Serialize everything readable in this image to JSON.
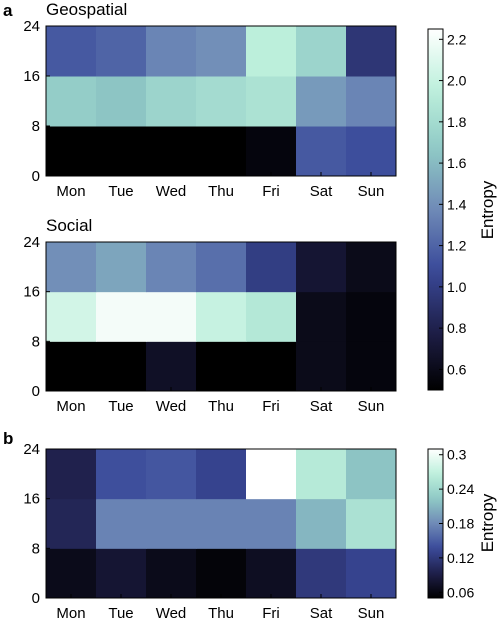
{
  "chart_data": [
    {
      "type": "heatmap",
      "panel_label": "a",
      "title": "Geospatial",
      "categories": [
        "Mon",
        "Tue",
        "Wed",
        "Thu",
        "Fri",
        "Sat",
        "Sun"
      ],
      "y_bins": [
        "0-8",
        "8-16",
        "16-24"
      ],
      "yticks": [
        "0",
        "8",
        "16",
        "24"
      ],
      "ylim": [
        0,
        24
      ],
      "values": [
        [
          0.45,
          0.4,
          0.45,
          0.45,
          0.55,
          1.15,
          1.1
        ],
        [
          1.7,
          1.65,
          1.75,
          1.8,
          1.85,
          1.45,
          1.35
        ],
        [
          1.15,
          1.2,
          1.35,
          1.4,
          1.95,
          1.75,
          0.95
        ]
      ]
    },
    {
      "type": "heatmap",
      "panel_label": "",
      "title": "Social",
      "categories": [
        "Mon",
        "Tue",
        "Wed",
        "Thu",
        "Fri",
        "Sat",
        "Sun"
      ],
      "y_bins": [
        "0-8",
        "8-16",
        "16-24"
      ],
      "yticks": [
        "0",
        "8",
        "16",
        "24"
      ],
      "ylim": [
        0,
        24
      ],
      "values": [
        [
          0.5,
          0.5,
          0.65,
          0.5,
          0.5,
          0.6,
          0.55
        ],
        [
          2.05,
          2.2,
          2.2,
          2.0,
          1.9,
          0.6,
          0.55
        ],
        [
          1.4,
          1.5,
          1.35,
          1.25,
          1.0,
          0.7,
          0.6
        ]
      ]
    },
    {
      "type": "heatmap",
      "panel_label": "b",
      "title": "",
      "categories": [
        "Mon",
        "Tue",
        "Wed",
        "Thu",
        "Fri",
        "Sat",
        "Sun"
      ],
      "y_bins": [
        "0-8",
        "8-16",
        "16-24"
      ],
      "yticks": [
        "0",
        "8",
        "16",
        "24"
      ],
      "ylim": [
        0,
        24
      ],
      "values": [
        [
          0.065,
          0.08,
          0.065,
          0.055,
          0.07,
          0.12,
          0.13
        ],
        [
          0.1,
          0.175,
          0.175,
          0.175,
          0.175,
          0.21,
          0.25
        ],
        [
          0.095,
          0.14,
          0.145,
          0.13,
          0.31,
          0.26,
          0.22
        ]
      ]
    }
  ],
  "colorbars": [
    {
      "label": "Entropy",
      "ticks": [
        "0.6",
        "0.8",
        "1.0",
        "1.2",
        "1.4",
        "1.6",
        "1.8",
        "2.0",
        "2.2"
      ],
      "vmin": 0.5,
      "vmax": 2.25
    },
    {
      "label": "Entropy",
      "ticks": [
        "0.06",
        "0.12",
        "0.18",
        "0.24",
        "0.3"
      ],
      "vmin": 0.05,
      "vmax": 0.31
    }
  ],
  "colormap_stops": [
    "#000000",
    "#1f1f4a",
    "#3a4a9a",
    "#6f8ab7",
    "#8fc9c5",
    "#bdf0dc",
    "#ffffff"
  ]
}
